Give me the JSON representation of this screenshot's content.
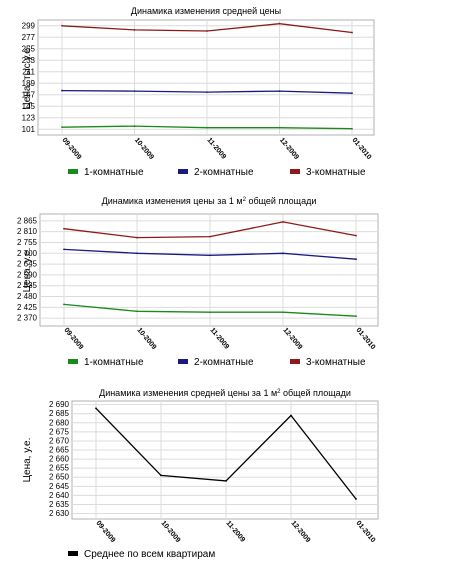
{
  "chart_data": [
    {
      "type": "line",
      "title": "Динамика изменения средней цены",
      "title_sup": "",
      "title_after": "",
      "ylabel": "Цена, тыс у.е.",
      "categories": [
        "09-2009",
        "10-2009",
        "11-2009",
        "12-2009",
        "01-2010"
      ],
      "yticks": [
        "101",
        "123",
        "145",
        "167",
        "189",
        "211",
        "233",
        "255",
        "277",
        "299"
      ],
      "ylim": [
        90,
        310
      ],
      "grid": true,
      "legend_position": "bottom",
      "series": [
        {
          "name": "1-комнатные",
          "color": "#1a8a1a",
          "values": [
            105,
            107,
            104,
            104,
            102
          ]
        },
        {
          "name": "2-комнатные",
          "color": "#1a1a80",
          "values": [
            175,
            174,
            172,
            174,
            170
          ]
        },
        {
          "name": "3-комнатные",
          "color": "#8b1a1a",
          "values": [
            299,
            291,
            289,
            303,
            286
          ]
        }
      ]
    },
    {
      "type": "line",
      "title": "Динамика изменения цены за 1 м",
      "title_sup": "2",
      "title_after": " общей площади",
      "ylabel": "Цена, у.е.",
      "categories": [
        "09-2009",
        "10-2009",
        "11-2009",
        "12-2009",
        "01-2010"
      ],
      "yticks": [
        "2 370",
        "2 425",
        "2 480",
        "2 535",
        "2 590",
        "2 645",
        "2 700",
        "2 755",
        "2 810",
        "2 865"
      ],
      "ylim": [
        2330,
        2900
      ],
      "grid": true,
      "legend_position": "bottom",
      "series": [
        {
          "name": "1-комнатные",
          "color": "#1a8a1a",
          "values": [
            2440,
            2405,
            2400,
            2400,
            2380
          ]
        },
        {
          "name": "2-комнатные",
          "color": "#1a1a80",
          "values": [
            2720,
            2700,
            2690,
            2700,
            2670
          ]
        },
        {
          "name": "3-комнатные",
          "color": "#8b1a1a",
          "values": [
            2825,
            2780,
            2785,
            2860,
            2790
          ]
        }
      ]
    },
    {
      "type": "line",
      "title": "Динамика изменения средней цены за 1 м",
      "title_sup": "2",
      "title_after": " общей площади",
      "ylabel": "Цена, у.е.",
      "categories": [
        "09-2009",
        "10-2009",
        "11-2009",
        "12-2009",
        "01-2010"
      ],
      "yticks": [
        "2 630",
        "2 635",
        "2 640",
        "2 645",
        "2 650",
        "2 655",
        "2 660",
        "2 665",
        "2 670",
        "2 675",
        "2 680",
        "2 685",
        "2 690"
      ],
      "ylim": [
        2627,
        2692
      ],
      "grid": true,
      "legend_position": "bottom",
      "series": [
        {
          "name": "Среднее по всем квартирам",
          "color": "#000000",
          "values": [
            2688,
            2651,
            2648,
            2684,
            2638
          ]
        }
      ]
    }
  ]
}
